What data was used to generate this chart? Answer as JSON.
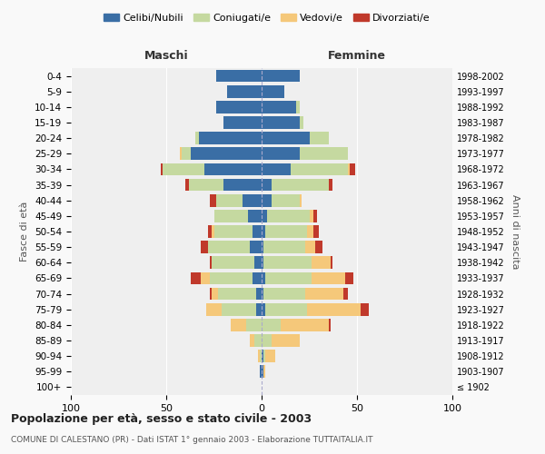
{
  "age_groups": [
    "100+",
    "95-99",
    "90-94",
    "85-89",
    "80-84",
    "75-79",
    "70-74",
    "65-69",
    "60-64",
    "55-59",
    "50-54",
    "45-49",
    "40-44",
    "35-39",
    "30-34",
    "25-29",
    "20-24",
    "15-19",
    "10-14",
    "5-9",
    "0-4"
  ],
  "birth_years": [
    "≤ 1902",
    "1903-1907",
    "1908-1912",
    "1913-1917",
    "1918-1922",
    "1923-1927",
    "1928-1932",
    "1933-1937",
    "1938-1942",
    "1943-1947",
    "1948-1952",
    "1953-1957",
    "1958-1962",
    "1963-1967",
    "1968-1972",
    "1973-1977",
    "1978-1982",
    "1983-1987",
    "1988-1992",
    "1993-1997",
    "1998-2002"
  ],
  "males": {
    "celibi": [
      0,
      1,
      0,
      0,
      0,
      3,
      3,
      5,
      4,
      6,
      5,
      7,
      10,
      20,
      30,
      37,
      33,
      20,
      24,
      18,
      24
    ],
    "coniugati": [
      0,
      0,
      1,
      4,
      8,
      18,
      20,
      22,
      22,
      22,
      20,
      18,
      14,
      18,
      22,
      5,
      2,
      0,
      0,
      0,
      0
    ],
    "vedovi": [
      0,
      0,
      1,
      2,
      8,
      8,
      3,
      5,
      0,
      0,
      1,
      0,
      0,
      0,
      0,
      1,
      0,
      0,
      0,
      0,
      0
    ],
    "divorziati": [
      0,
      0,
      0,
      0,
      0,
      0,
      1,
      5,
      1,
      4,
      2,
      0,
      3,
      2,
      1,
      0,
      0,
      0,
      0,
      0,
      0
    ]
  },
  "females": {
    "nubili": [
      0,
      1,
      1,
      0,
      0,
      2,
      1,
      2,
      1,
      1,
      2,
      3,
      5,
      5,
      15,
      20,
      25,
      20,
      18,
      12,
      20
    ],
    "coniugate": [
      0,
      0,
      1,
      5,
      10,
      22,
      22,
      24,
      25,
      22,
      22,
      22,
      15,
      30,
      30,
      25,
      10,
      2,
      2,
      0,
      0
    ],
    "vedove": [
      0,
      1,
      5,
      15,
      25,
      28,
      20,
      18,
      10,
      5,
      3,
      2,
      1,
      0,
      1,
      0,
      0,
      0,
      0,
      0,
      0
    ],
    "divorziate": [
      0,
      0,
      0,
      0,
      1,
      4,
      2,
      4,
      1,
      4,
      3,
      2,
      0,
      2,
      3,
      0,
      0,
      0,
      0,
      0,
      0
    ]
  },
  "colors": {
    "celibi_nubili": "#3a6ea5",
    "coniugati": "#c5d9a0",
    "vedovi": "#f5c87a",
    "divorziati": "#c0392b"
  },
  "xlim": 100,
  "title": "Popolazione per età, sesso e stato civile - 2003",
  "subtitle": "COMUNE DI CALESTANO (PR) - Dati ISTAT 1° gennaio 2003 - Elaborazione TUTTAITALIA.IT",
  "xlabel_left": "Maschi",
  "xlabel_right": "Femmine",
  "ylabel_left": "Fasce di età",
  "ylabel_right": "Anni di nascita",
  "bg_color": "#f9f9f9",
  "plot_bg": "#efefef"
}
